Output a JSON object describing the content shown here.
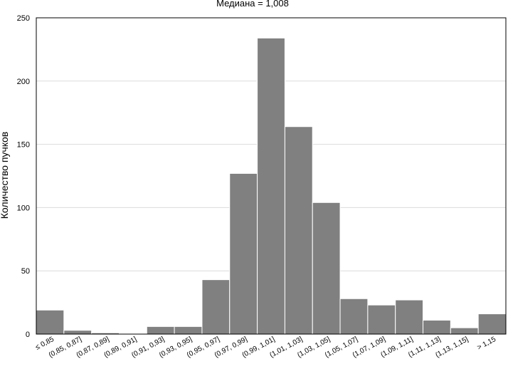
{
  "chart_data": {
    "type": "bar",
    "title": "Медиана = 1,008",
    "xlabel": "",
    "ylabel": "Количество пучков",
    "ylim": [
      0,
      250
    ],
    "yticks": [
      0,
      50,
      100,
      150,
      200,
      250
    ],
    "grid": true,
    "categories": [
      "≤ 0,85",
      "(0,85, 0,87]",
      "(0,87, 0,89]",
      "(0,89, 0,91]",
      "(0,91, 0,93]",
      "(0,93, 0,95]",
      "(0,95, 0,97]",
      "(0,97, 0,99]",
      "(0,99, 1,01]",
      "(1,01, 1,03]",
      "(1,03, 1,05]",
      "(1,05, 1,07]",
      "(1,07, 1,09]",
      "(1,09, 1,11]",
      "(1,11, 1,13]",
      "(1,13, 1,15]",
      "> 1,15"
    ],
    "values": [
      19,
      3,
      1,
      0,
      6,
      6,
      43,
      127,
      234,
      164,
      104,
      28,
      23,
      27,
      11,
      5,
      16
    ],
    "bar_color": "#808080"
  }
}
